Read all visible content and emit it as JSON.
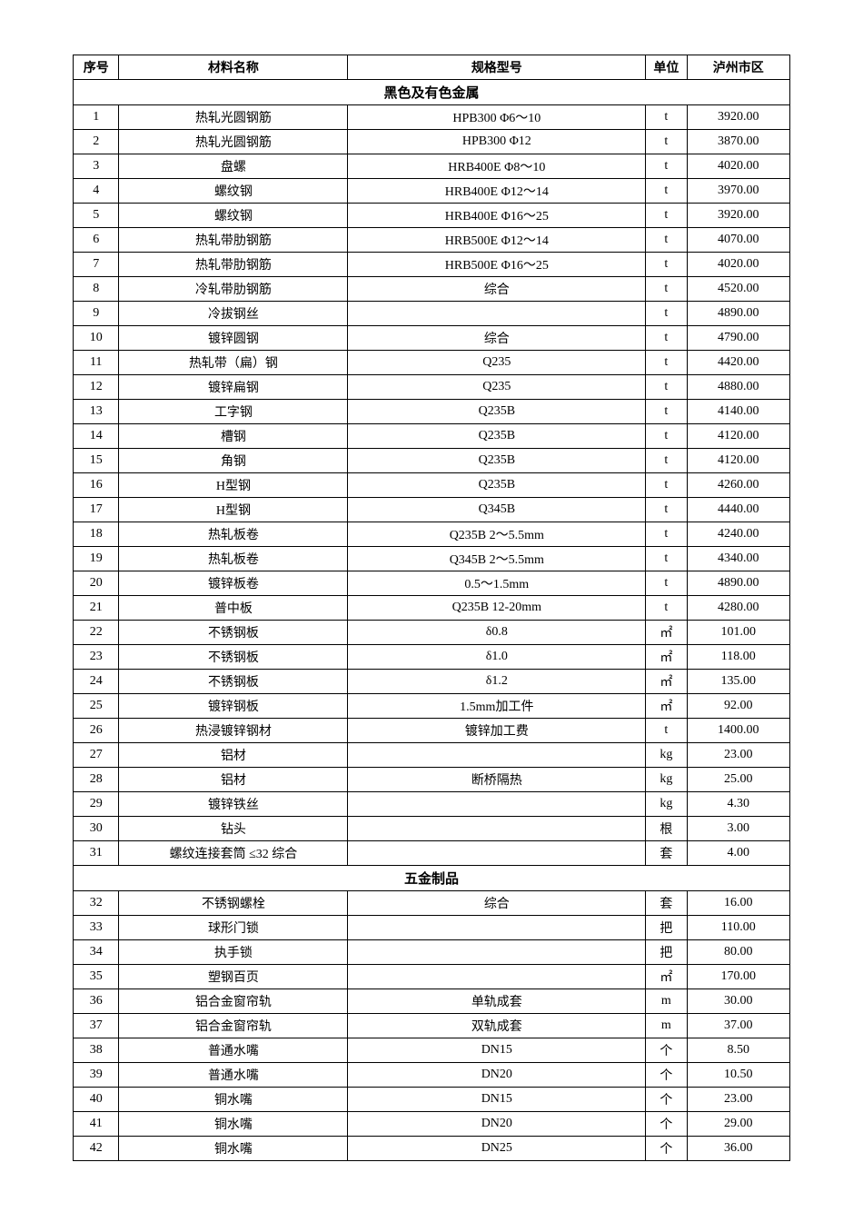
{
  "headers": {
    "seq": "序号",
    "name": "材料名称",
    "spec": "规格型号",
    "unit": "单位",
    "price": "泸州市区"
  },
  "sections": [
    {
      "title": "黑色及有色金属",
      "rows": [
        {
          "seq": "1",
          "name": "热轧光圆钢筋",
          "spec": "HPB300 Φ6～10",
          "unit": "t",
          "price": "3920.00"
        },
        {
          "seq": "2",
          "name": "热轧光圆钢筋",
          "spec": "HPB300 Φ12",
          "unit": "t",
          "price": "3870.00"
        },
        {
          "seq": "3",
          "name": "盘螺",
          "spec": "HRB400E Φ8～10",
          "unit": "t",
          "price": "4020.00"
        },
        {
          "seq": "4",
          "name": "螺纹钢",
          "spec": "HRB400E Φ12～14",
          "unit": "t",
          "price": "3970.00"
        },
        {
          "seq": "5",
          "name": "螺纹钢",
          "spec": "HRB400E Φ16～25",
          "unit": "t",
          "price": "3920.00"
        },
        {
          "seq": "6",
          "name": "热轧带肋钢筋",
          "spec": "HRB500E Φ12～14",
          "unit": "t",
          "price": "4070.00"
        },
        {
          "seq": "7",
          "name": "热轧带肋钢筋",
          "spec": "HRB500E Φ16～25",
          "unit": "t",
          "price": "4020.00"
        },
        {
          "seq": "8",
          "name": "冷轧带肋钢筋",
          "spec": "综合",
          "unit": "t",
          "price": "4520.00"
        },
        {
          "seq": "9",
          "name": "冷拔钢丝",
          "spec": "",
          "unit": "t",
          "price": "4890.00"
        },
        {
          "seq": "10",
          "name": "镀锌圆钢",
          "spec": "综合",
          "unit": "t",
          "price": "4790.00"
        },
        {
          "seq": "11",
          "name": "热轧带（扁）钢",
          "spec": "Q235",
          "unit": "t",
          "price": "4420.00"
        },
        {
          "seq": "12",
          "name": "镀锌扁钢",
          "spec": "Q235",
          "unit": "t",
          "price": "4880.00"
        },
        {
          "seq": "13",
          "name": "工字钢",
          "spec": "Q235B",
          "unit": "t",
          "price": "4140.00"
        },
        {
          "seq": "14",
          "name": "槽钢",
          "spec": "Q235B",
          "unit": "t",
          "price": "4120.00"
        },
        {
          "seq": "15",
          "name": "角钢",
          "spec": "Q235B",
          "unit": "t",
          "price": "4120.00"
        },
        {
          "seq": "16",
          "name": "H型钢",
          "spec": "Q235B",
          "unit": "t",
          "price": "4260.00"
        },
        {
          "seq": "17",
          "name": "H型钢",
          "spec": "Q345B",
          "unit": "t",
          "price": "4440.00"
        },
        {
          "seq": "18",
          "name": "热轧板卷",
          "spec": "Q235B 2～5.5mm",
          "unit": "t",
          "price": "4240.00"
        },
        {
          "seq": "19",
          "name": "热轧板卷",
          "spec": "Q345B 2～5.5mm",
          "unit": "t",
          "price": "4340.00"
        },
        {
          "seq": "20",
          "name": "镀锌板卷",
          "spec": "0.5～1.5mm",
          "unit": "t",
          "price": "4890.00"
        },
        {
          "seq": "21",
          "name": "普中板",
          "spec": "Q235B 12-20mm",
          "unit": "t",
          "price": "4280.00"
        },
        {
          "seq": "22",
          "name": "不锈钢板",
          "spec": "δ0.8",
          "unit": "㎡",
          "price": "101.00"
        },
        {
          "seq": "23",
          "name": "不锈钢板",
          "spec": "δ1.0",
          "unit": "㎡",
          "price": "118.00"
        },
        {
          "seq": "24",
          "name": "不锈钢板",
          "spec": "δ1.2",
          "unit": "㎡",
          "price": "135.00"
        },
        {
          "seq": "25",
          "name": "镀锌钢板",
          "spec": "1.5mm加工件",
          "unit": "㎡",
          "price": "92.00"
        },
        {
          "seq": "26",
          "name": "热浸镀锌钢材",
          "spec": "镀锌加工费",
          "unit": "t",
          "price": "1400.00"
        },
        {
          "seq": "27",
          "name": "铝材",
          "spec": "",
          "unit": "kg",
          "price": "23.00"
        },
        {
          "seq": "28",
          "name": "铝材",
          "spec": "断桥隔热",
          "unit": "kg",
          "price": "25.00"
        },
        {
          "seq": "29",
          "name": "镀锌铁丝",
          "spec": "",
          "unit": "kg",
          "price": "4.30"
        },
        {
          "seq": "30",
          "name": "钻头",
          "spec": "",
          "unit": "根",
          "price": "3.00"
        },
        {
          "seq": "31",
          "name": "螺纹连接套筒 ≤32 综合",
          "spec": "",
          "unit": "套",
          "price": "4.00"
        }
      ]
    },
    {
      "title": "五金制品",
      "rows": [
        {
          "seq": "32",
          "name": "不锈钢螺栓",
          "spec": "综合",
          "unit": "套",
          "price": "16.00"
        },
        {
          "seq": "33",
          "name": "球形门锁",
          "spec": "",
          "unit": "把",
          "price": "110.00"
        },
        {
          "seq": "34",
          "name": "执手锁",
          "spec": "",
          "unit": "把",
          "price": "80.00"
        },
        {
          "seq": "35",
          "name": "塑钢百页",
          "spec": "",
          "unit": "㎡",
          "price": "170.00"
        },
        {
          "seq": "36",
          "name": "铝合金窗帘轨",
          "spec": "单轨成套",
          "unit": "m",
          "price": "30.00"
        },
        {
          "seq": "37",
          "name": "铝合金窗帘轨",
          "spec": "双轨成套",
          "unit": "m",
          "price": "37.00"
        },
        {
          "seq": "38",
          "name": "普通水嘴",
          "spec": "DN15",
          "unit": "个",
          "price": "8.50"
        },
        {
          "seq": "39",
          "name": "普通水嘴",
          "spec": "DN20",
          "unit": "个",
          "price": "10.50"
        },
        {
          "seq": "40",
          "name": "铜水嘴",
          "spec": "DN15",
          "unit": "个",
          "price": "23.00"
        },
        {
          "seq": "41",
          "name": "铜水嘴",
          "spec": "DN20",
          "unit": "个",
          "price": "29.00"
        },
        {
          "seq": "42",
          "name": "铜水嘴",
          "spec": "DN25",
          "unit": "个",
          "price": "36.00"
        }
      ]
    }
  ]
}
